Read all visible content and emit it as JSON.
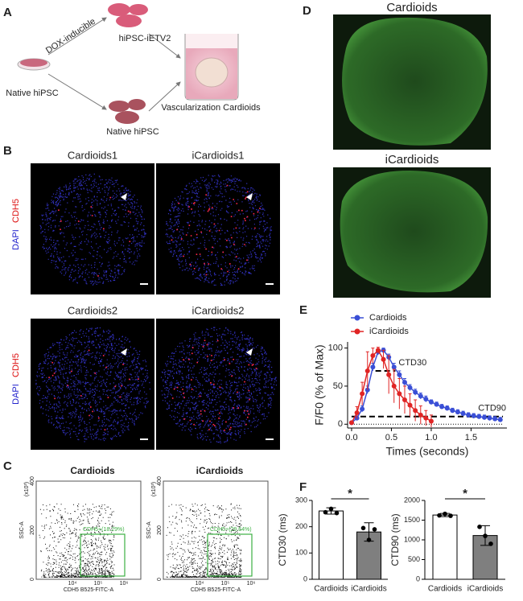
{
  "panel_labels": [
    "A",
    "B",
    "C",
    "D",
    "E",
    "F"
  ],
  "schematic": {
    "dox": "DOX-inducible",
    "ietv2": "hiPSC-iETV2",
    "native_left": "Native hiPSC",
    "native_bottom": "Native hiPSC",
    "result": "Vascularization Cardioids"
  },
  "staining": {
    "stain_labels": [
      "DAPI",
      "CDH5"
    ],
    "titles": [
      "Cardioids1",
      "iCardioids1",
      "Cardioids2",
      "iCardioids2"
    ]
  },
  "flow": {
    "titles": [
      "Cardioids",
      "iCardioids"
    ],
    "gates": [
      "CDH5+(18.29%)",
      "CDH5+(29.64%)"
    ],
    "y_label": "SSC-A",
    "x_label": "CDH5 B525-FITC-A",
    "y_multiplier": "(x10³)",
    "y_ticks": [
      "0",
      "200",
      "400"
    ],
    "x_ticks": [
      "10⁴",
      "10⁵",
      "10⁶"
    ]
  },
  "calcium_images": {
    "titles": [
      "Cardioids",
      "iCardioids"
    ]
  },
  "chart_data": [
    {
      "type": "line",
      "x_label": "Times (seconds)",
      "y_label": "F/F0 (% of Max)",
      "xlim": [
        -0.05,
        1.95
      ],
      "ylim": [
        -5,
        108
      ],
      "xticks": [
        {
          "value": 0,
          "label": "0.0"
        },
        {
          "value": 0.5,
          "label": "0.5"
        },
        {
          "value": 1,
          "label": "1.0"
        },
        {
          "value": 1.5,
          "label": "1.5"
        }
      ],
      "yticks": [
        0,
        50,
        100
      ],
      "series": [
        {
          "name": "Cardioids",
          "color": "#3a4fd6",
          "x": [
            0,
            0.067,
            0.133,
            0.2,
            0.267,
            0.333,
            0.4,
            0.467,
            0.533,
            0.6,
            0.667,
            0.733,
            0.8,
            0.867,
            0.933,
            1.0,
            1.067,
            1.133,
            1.2,
            1.267,
            1.333,
            1.4,
            1.467,
            1.533,
            1.6,
            1.667,
            1.733,
            1.8,
            1.867
          ],
          "values": [
            2,
            8,
            20,
            45,
            75,
            95,
            97,
            88,
            75,
            65,
            55,
            48,
            42,
            37,
            33,
            29,
            26,
            23,
            21,
            18,
            16,
            14,
            12,
            11,
            10,
            9,
            8,
            7,
            6
          ],
          "errors": [
            2,
            3,
            4,
            5,
            5,
            4,
            3,
            4,
            5,
            5,
            5,
            4,
            4,
            4,
            4,
            3,
            3,
            3,
            3,
            3,
            3,
            3,
            3,
            3,
            3,
            3,
            3,
            3,
            3
          ]
        },
        {
          "name": "iCardioids",
          "color": "#e02424",
          "x": [
            0,
            0.067,
            0.133,
            0.2,
            0.267,
            0.333,
            0.4,
            0.467,
            0.533,
            0.6,
            0.667,
            0.733,
            0.8,
            0.867,
            0.933,
            1.0
          ],
          "values": [
            2,
            15,
            40,
            70,
            90,
            97,
            85,
            65,
            50,
            40,
            32,
            25,
            18,
            12,
            8,
            4
          ],
          "errors": [
            2,
            8,
            15,
            25,
            10,
            4,
            12,
            25,
            22,
            20,
            18,
            15,
            14,
            12,
            10,
            8
          ]
        }
      ],
      "reference_lines": [
        {
          "label": "CTD30",
          "y": 70,
          "x": [
            0.3,
            0.55
          ],
          "style": "dashed"
        },
        {
          "label": "CTD90",
          "y": 10,
          "x": [
            0,
            1.9
          ],
          "style": "dashed"
        },
        {
          "y": 0,
          "x": [
            0,
            1.9
          ],
          "style": "dotted"
        }
      ]
    },
    {
      "type": "bar",
      "y_label": "CTD30  (ms)",
      "categories": [
        "Cardioids",
        "iCardioids"
      ],
      "values": [
        260,
        180
      ],
      "errors": [
        12,
        35
      ],
      "points": [
        [
          255,
          268,
          252
        ],
        [
          195,
          150,
          190
        ]
      ],
      "colors": [
        "#ffffff",
        "#7f7f7f"
      ],
      "ylim": [
        0,
        300
      ],
      "yticks": [
        0,
        100,
        200,
        300
      ],
      "significance": "*"
    },
    {
      "type": "bar",
      "y_label": "CTD90  (ms)",
      "categories": [
        "Cardioids",
        "iCardioids"
      ],
      "values": [
        1630,
        1110
      ],
      "errors": [
        40,
        250
      ],
      "points": [
        [
          1620,
          1660,
          1610
        ],
        [
          1330,
          1100,
          900
        ]
      ],
      "colors": [
        "#ffffff",
        "#7f7f7f"
      ],
      "ylim": [
        0,
        2000
      ],
      "yticks": [
        0,
        500,
        1000,
        1500,
        2000
      ],
      "significance": "*"
    }
  ]
}
